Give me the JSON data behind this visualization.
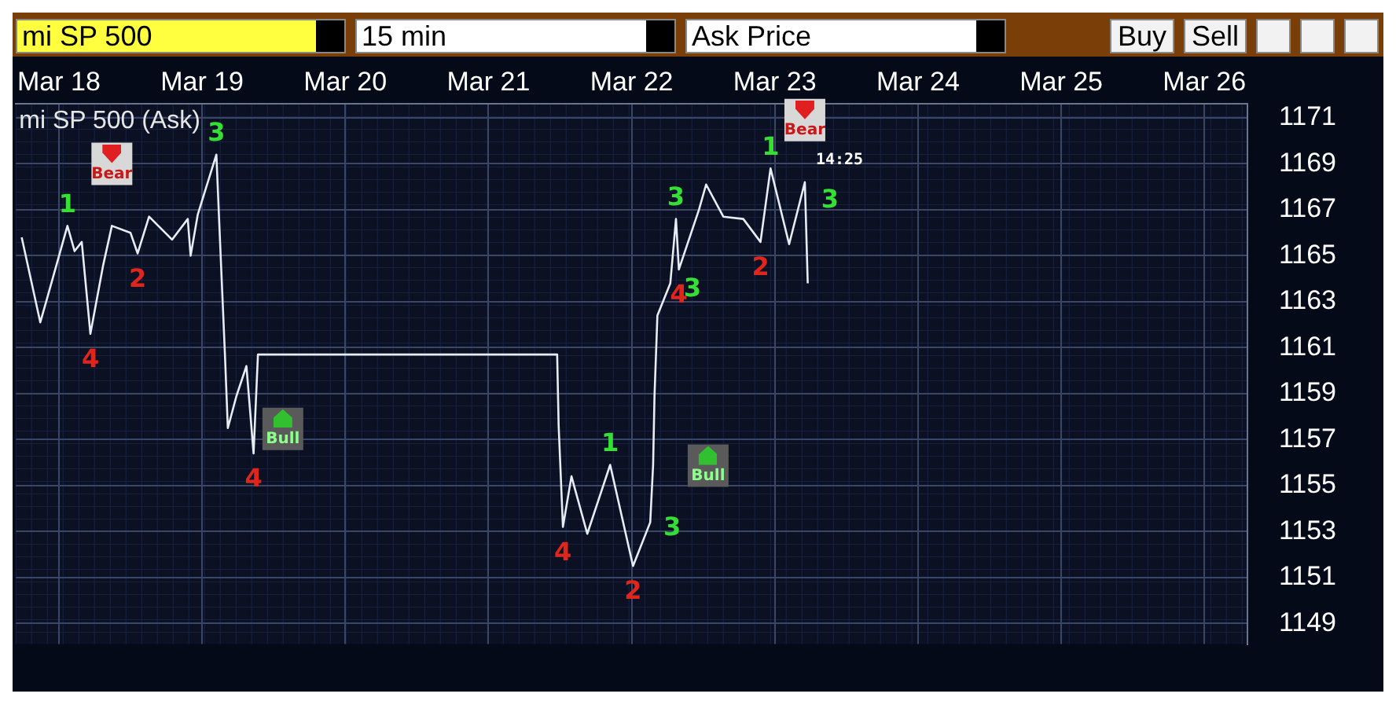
{
  "chart_data": {
    "type": "line",
    "title": "mi SP 500 (Ask)",
    "x": [
      "--03-18T05:46",
      "--03-18T08:53",
      "--03-18T10:05",
      "--03-18T13:26",
      "--03-18T14:38",
      "--03-18T15:50",
      "--03-18T17:17",
      "--03-18T19:26",
      "--03-18T20:53",
      "--03-19T00:00",
      "--03-19T01:12",
      "--03-19T03:07",
      "--03-19T06:58",
      "--03-19T09:36",
      "--03-19T10:05",
      "--03-19T11:17",
      "--03-19T14:24",
      "--03-19T14:53",
      "--03-19T15:50",
      "--03-19T16:19",
      "--03-19T17:46",
      "--03-19T19:26",
      "--03-19T20:38",
      "--03-19T21:22",
      "--03-21T23:31",
      "--03-21T23:46",
      "--03-22T00:29",
      "--03-22T01:55",
      "--03-22T04:34",
      "--03-22T08:24",
      "--03-22T12:14",
      "--03-22T15:07",
      "--03-22T15:36",
      "--03-22T15:50",
      "--03-22T16:19",
      "--03-22T18:29",
      "--03-22T19:26",
      "--03-22T19:55",
      "--03-22T23:17",
      "--03-23T00:29",
      "--03-23T03:22",
      "--03-23T06:43",
      "--03-23T09:36",
      "--03-23T11:17",
      "--03-23T14:24",
      "--03-23T17:02",
      "--03-23T17:31"
    ],
    "series": [
      {
        "color": "#e8ecf4",
        "values": [
          1165.8,
          1162.1,
          1163.2,
          1166.3,
          1165.2,
          1165.6,
          1161.6,
          1164.6,
          1166.3,
          1166.0,
          1165.1,
          1166.7,
          1165.7,
          1166.6,
          1165.0,
          1166.8,
          1169.4,
          1166.4,
          1160.7,
          1157.5,
          1158.9,
          1160.2,
          1156.4,
          1160.7,
          1160.7,
          1157.6,
          1153.2,
          1155.4,
          1152.9,
          1155.9,
          1151.5,
          1153.4,
          1155.9,
          1158.9,
          1162.4,
          1163.8,
          1166.6,
          1164.4,
          1167.0,
          1168.1,
          1166.7,
          1166.6,
          1165.6,
          1168.8,
          1165.5,
          1168.2,
          1163.8
        ]
      }
    ],
    "xlim": [
      "--03-18T04:48",
      "--03-26T19:12"
    ],
    "xticks": [
      {
        "value": "--03-18T12:00",
        "label": "Mar 18"
      },
      {
        "value": "--03-19T12:00",
        "label": "Mar 19"
      },
      {
        "value": "--03-20T12:00",
        "label": "Mar 20"
      },
      {
        "value": "--03-21T12:00",
        "label": "Mar 21"
      },
      {
        "value": "--03-22T12:00",
        "label": "Mar 22"
      },
      {
        "value": "--03-23T12:00",
        "label": "Mar 23"
      },
      {
        "value": "--03-24T12:00",
        "label": "Mar 24"
      },
      {
        "value": "--03-25T12:00",
        "label": "Mar 25"
      },
      {
        "value": "--03-26T12:00",
        "label": "Mar 26"
      }
    ],
    "ylim": [
      1148.1,
      1171.6
    ],
    "yticks": [
      1149,
      1151,
      1153,
      1155,
      1157,
      1159,
      1161,
      1163,
      1165,
      1167,
      1169,
      1171
    ],
    "grid": true,
    "legend": false,
    "marker": "none",
    "line_style": "solid",
    "annotations": [
      "mi SP 500",
      "15 min",
      "Ask Price",
      "Buy",
      "Sell",
      {
        "text": "1",
        "x": "--03-18T13:26",
        "y": 1166.3
      },
      {
        "text": "2",
        "x": "--03-19T01:12",
        "y": 1165.1
      },
      {
        "text": "3",
        "x": "--03-19T14:24",
        "y": 1169.4
      },
      {
        "text": "4",
        "x": "--03-18T17:17",
        "y": 1161.6
      },
      {
        "text": "4",
        "x": "--03-19T20:38",
        "y": 1156.4
      },
      {
        "text": "Bear",
        "x": "--03-18T20:53",
        "y": 1166.3
      },
      {
        "text": "Bull",
        "x": "--03-19T16:19",
        "y": 1157.5
      },
      {
        "text": "1",
        "x": "--03-22T08:24",
        "y": 1155.9
      },
      {
        "text": "3",
        "x": "--03-22T15:07",
        "y": 1153.4
      },
      {
        "text": "4",
        "x": "--03-22T00:29",
        "y": 1153.2
      },
      {
        "text": "2",
        "x": "--03-22T12:14",
        "y": 1151.5
      },
      {
        "text": "Bull",
        "x": "--03-22T15:36",
        "y": 1155.9
      },
      {
        "text": "3",
        "x": "--03-22T18:29",
        "y": 1163.8
      },
      {
        "text": "3",
        "x": "--03-22T19:26",
        "y": 1166.6
      },
      {
        "text": "4",
        "x": "--03-22T19:55",
        "y": 1164.4
      },
      {
        "text": "1",
        "x": "--03-23T11:17",
        "y": 1168.8
      },
      {
        "text": "Bear",
        "x": "--03-23T17:02",
        "y": 1168.2
      },
      {
        "text": "14:25",
        "x": "--03-23T17:02",
        "y": 1168.2
      },
      {
        "text": "2",
        "x": "--03-23T09:36",
        "y": 1165.6
      },
      {
        "text": "3",
        "x": "--03-23T17:02",
        "y": 1168.2
      }
    ]
  }
}
